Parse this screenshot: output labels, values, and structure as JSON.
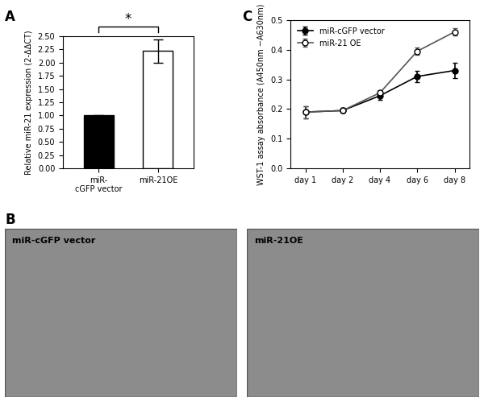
{
  "chart_data": [
    {
      "type": "bar",
      "title": "A",
      "ylabel": "Relative miR-21 expression (2-ΔΔCT)",
      "categories": [
        "miR-\ncGFP vector",
        "miR-21OE"
      ],
      "values": [
        1.0,
        2.22
      ],
      "errors": [
        0.01,
        0.22
      ],
      "colors": [
        "#000000",
        "#ffffff"
      ],
      "ylim": [
        0,
        2.5
      ],
      "yticks": [
        {
          "value": 0,
          "label": "0.00"
        },
        {
          "value": 0.25,
          "label": "0.25"
        },
        {
          "value": 0.5,
          "label": "0.50"
        },
        {
          "value": 0.75,
          "label": "0.75"
        },
        {
          "value": 1.0,
          "label": "1.00"
        },
        {
          "value": 1.25,
          "label": "1.25"
        },
        {
          "value": 1.5,
          "label": "1.50"
        },
        {
          "value": 1.75,
          "label": "1.75"
        },
        {
          "value": 2.0,
          "label": "2.00"
        },
        {
          "value": 2.25,
          "label": "2.25"
        },
        {
          "value": 2.5,
          "label": "2.50"
        }
      ],
      "annotation": "*"
    },
    {
      "type": "line",
      "title": "C",
      "ylabel": "WST-1 assay absorbance (A450nm −A630nm)",
      "categories": [
        "day 1",
        "day 2",
        "day 4",
        "day 6",
        "day 8"
      ],
      "series": [
        {
          "name": "miR-cGFP vector",
          "color": "#000000",
          "marker": "circle",
          "values": [
            0.19,
            0.195,
            0.245,
            0.31,
            0.33
          ],
          "errors": [
            0.02,
            0.008,
            0.015,
            0.02,
            0.025
          ]
        },
        {
          "name": "miR-21 OE",
          "color": "#555555",
          "marker": "open_circle",
          "values": [
            0.19,
            0.195,
            0.255,
            0.395,
            0.46
          ],
          "errors": [
            0.02,
            0.005,
            0.008,
            0.012,
            0.012
          ]
        }
      ],
      "ylim": [
        0,
        0.5
      ],
      "yticks": [
        {
          "value": 0,
          "label": "0.0"
        },
        0.1,
        0.2,
        0.3,
        0.4,
        0.5
      ],
      "legend": "upper left"
    }
  ],
  "images": {
    "label": "B",
    "panels": [
      {
        "caption": "miR-cGFP vector"
      },
      {
        "caption": "miR-21OE"
      }
    ]
  }
}
